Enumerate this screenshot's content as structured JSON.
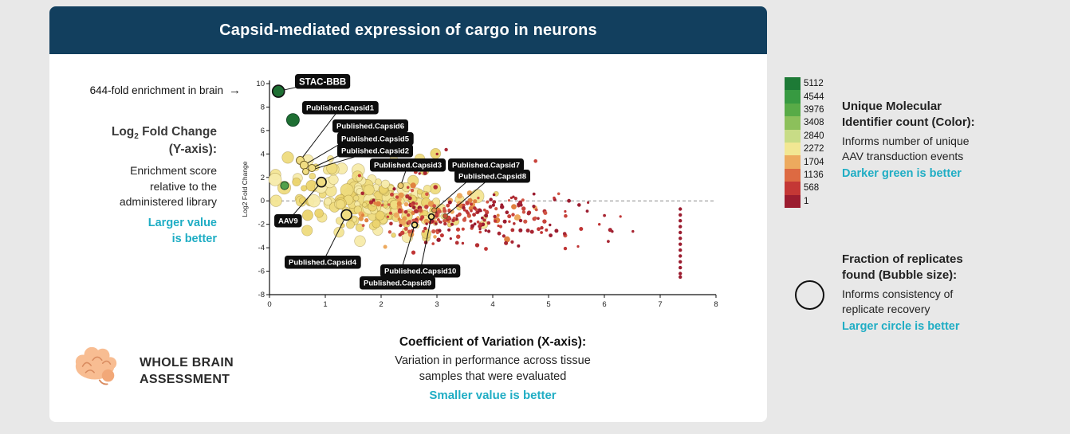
{
  "page": {
    "background": "#e8e8e8",
    "card_background": "#ffffff",
    "header_navy": "#123f5e",
    "accent_cyan": "#1fadc4"
  },
  "header": {
    "title": "Capsid-mediated expression of cargo in neurons"
  },
  "left_annotations": {
    "enrichment_note": "644-fold enrichment in brain",
    "arrow": "→",
    "y_block_head_pre": "Log",
    "y_block_head_sub": "2",
    "y_block_head_post": " Fold Change",
    "y_block_head_line2": "(Y-axis):",
    "y_block_body": "Enrichment score\nrelative to the\nadministered library",
    "y_block_highlight": "Larger value\nis better"
  },
  "bottom_annotations": {
    "x_block_title": "Coefficient of Variation (X-axis):",
    "x_block_body": "Variation in performance across  tissue\nsamples that were evaluated",
    "x_block_highlight": "Smaller value is better",
    "whole_brain_line1": "WHOLE BRAIN",
    "whole_brain_line2": "ASSESSMENT"
  },
  "color_legend": {
    "values": [
      "5112",
      "4544",
      "3976",
      "3408",
      "2840",
      "2272",
      "1704",
      "1136",
      "568",
      "1"
    ],
    "colors": [
      "#1d7a36",
      "#379a41",
      "#58ab47",
      "#8cc05b",
      "#c8dc86",
      "#f2e793",
      "#edaa5e",
      "#dd6a42",
      "#c43735",
      "#9b1c2f"
    ],
    "title": "Unique Molecular\nIdentifier count (Color):",
    "body": "Informs number of unique\nAAV transduction events",
    "highlight": "Darker green is better"
  },
  "size_legend": {
    "title": "Fraction of replicates\nfound (Bubble size):",
    "body": "Informs consistency of\nreplicate recovery",
    "highlight": "Larger circle is better"
  },
  "chart_data": {
    "type": "scatter",
    "title": "Capsid-mediated expression of cargo in neurons",
    "xlabel": "Coefficient of Variation",
    "ylabel": "Log2 Fold Change",
    "xlim": [
      0,
      8
    ],
    "ylim": [
      -8,
      10
    ],
    "x_ticks": [
      0,
      1,
      2,
      3,
      4,
      5,
      6,
      7,
      8
    ],
    "y_ticks": [
      -8,
      -6,
      -4,
      -2,
      0,
      2,
      4,
      6,
      8,
      10
    ],
    "zero_line_y": 0,
    "grid": false,
    "seed": 42,
    "labeled_points": [
      {
        "label": "STAC-BBB",
        "x": 0.16,
        "y": 9.35,
        "r": 7.5,
        "color": "#1e6f33",
        "ring": true,
        "pill": [
          70,
          8
        ],
        "font_size": 11.5
      },
      {
        "label": "Published.Capsid1",
        "x": 0.55,
        "y": 3.45,
        "r": 5,
        "color": "#f0dd82",
        "ring": false,
        "pill": [
          79,
          42
        ]
      },
      {
        "label": "Published.Capsid6",
        "x": 0.62,
        "y": 3.05,
        "r": 5,
        "color": "#f0dd82",
        "ring": false,
        "pill": [
          117,
          65
        ]
      },
      {
        "label": "Published.Capsid5",
        "x": 0.76,
        "y": 2.8,
        "r": 4.5,
        "color": "#f0dd82",
        "ring": false,
        "pill": [
          123,
          81
        ]
      },
      {
        "label": "Published.Capsid2",
        "x": 0.65,
        "y": 2.5,
        "r": 4,
        "color": "#f0dd82",
        "ring": false,
        "pill": [
          123,
          96
        ]
      },
      {
        "label": "Published.Capsid3",
        "x": 2.35,
        "y": 1.3,
        "r": 3.5,
        "color": "#eeca6f",
        "ring": false,
        "pill": [
          164,
          114
        ]
      },
      {
        "label": "Published.Capsid7",
        "x": 2.95,
        "y": -0.8,
        "r": 3,
        "color": "#e2924f",
        "ring": false,
        "pill": [
          262,
          114
        ]
      },
      {
        "label": "Published.Capsid8",
        "x": 3.15,
        "y": -1.3,
        "r": 3,
        "color": "#cc4e3a",
        "ring": false,
        "pill": [
          270,
          128
        ]
      },
      {
        "label": "AAV9",
        "x": 0.93,
        "y": 1.6,
        "r": 6,
        "color": "#f0dd82",
        "ring": true,
        "pill": [
          44,
          184
        ]
      },
      {
        "label": "Published.Capsid4",
        "x": 1.38,
        "y": -1.2,
        "r": 6.5,
        "color": "#f0dd82",
        "ring": true,
        "pill": [
          57,
          236
        ]
      },
      {
        "label": "Published.Capsid10",
        "x": 2.9,
        "y": -1.35,
        "r": 3.5,
        "color": "#f0dd82",
        "ring": true,
        "pill": [
          177,
          247
        ]
      },
      {
        "label": "Published.Capsid9",
        "x": 2.6,
        "y": -2.05,
        "r": 3.5,
        "color": "#f0dd82",
        "ring": true,
        "pill": [
          151,
          262
        ]
      }
    ],
    "highlight_points": [
      {
        "x": 0.42,
        "y": 6.9,
        "r": 8,
        "color": "#1e6f33"
      },
      {
        "x": 0.27,
        "y": 1.3,
        "r": 5,
        "color": "#53a04a"
      }
    ],
    "cloud_clusters": [
      {
        "name": "yellow-main",
        "n": 120,
        "cx": 1.55,
        "sx": 0.72,
        "cy": 0.35,
        "sy": 1.45,
        "rmin": 3.5,
        "rmax": 8.5,
        "colors": [
          "#f4e594",
          "#efdc7e",
          "#f7ecaa",
          "#ecd46d"
        ],
        "stroke": "rgba(130,105,30,0.4)",
        "opacity": 0.95
      },
      {
        "name": "yellow-right",
        "n": 65,
        "cx": 2.45,
        "sx": 0.6,
        "cy": -0.9,
        "sy": 1.0,
        "rmin": 2.5,
        "rmax": 6,
        "colors": [
          "#f4e594",
          "#efdc7e",
          "#ecd46d"
        ],
        "stroke": "rgba(130,105,30,0.4)",
        "opacity": 0.95
      },
      {
        "name": "yellow-top",
        "n": 9,
        "cx": 1.5,
        "sx": 0.55,
        "cy": 3.3,
        "sy": 0.6,
        "rmin": 4,
        "rmax": 7.5,
        "colors": [
          "#f4e594",
          "#efdc7e"
        ],
        "stroke": "rgba(130,105,30,0.4)",
        "opacity": 0.95
      },
      {
        "name": "orange",
        "n": 55,
        "cx": 2.9,
        "sx": 0.75,
        "cy": -0.9,
        "sy": 1.1,
        "rmin": 2,
        "rmax": 4,
        "colors": [
          "#eda95e",
          "#e79a4e",
          "#e08140"
        ],
        "stroke": "none",
        "opacity": 1
      },
      {
        "name": "red-main",
        "n": 170,
        "cx": 3.35,
        "sx": 0.8,
        "cy": -1.3,
        "sy": 1.05,
        "rmin": 1.6,
        "rmax": 2.8,
        "colors": [
          "#c8423a",
          "#b42f33",
          "#d05545",
          "#9c1b2e"
        ],
        "stroke": "none",
        "opacity": 1
      },
      {
        "name": "red-wide",
        "n": 55,
        "cx": 4.7,
        "sx": 1.05,
        "cy": -1.7,
        "sy": 1.15,
        "rmin": 1.6,
        "rmax": 2.6,
        "colors": [
          "#9b1c2f",
          "#a82633",
          "#c03535"
        ],
        "stroke": "none",
        "opacity": 1
      },
      {
        "name": "red-high",
        "n": 14,
        "cx": 2.7,
        "sx": 1.0,
        "cy": 1.8,
        "sy": 1.1,
        "rmin": 1.7,
        "rmax": 2.6,
        "colors": [
          "#c8423a",
          "#a82633"
        ],
        "stroke": "none",
        "opacity": 1
      }
    ],
    "outlier_strip": {
      "x": 7.36,
      "y_values": [
        -0.7,
        -1.2,
        -1.7,
        -2.2,
        -2.7,
        -3.2,
        -3.7,
        -4.2,
        -4.7,
        -5.2,
        -5.7,
        -6.2,
        -6.5
      ],
      "r": 2.2,
      "color": "#9b1c2f"
    }
  }
}
